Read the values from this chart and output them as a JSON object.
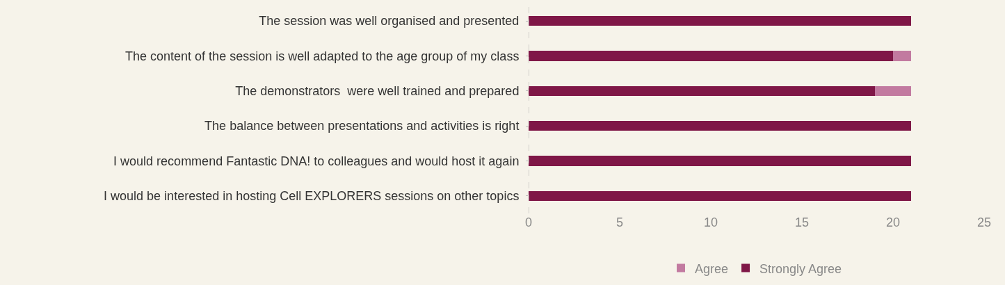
{
  "chart_data": {
    "type": "bar",
    "orientation": "horizontal",
    "stacked": true,
    "categories": [
      "The session was well organised and presented",
      "The content of the session is well adapted to the age group of my class",
      "The demonstrators  were well trained and prepared",
      "The balance between presentations and activities is right",
      "I would recommend Fantastic DNA! to colleagues and would host it again",
      "I would be interested in hosting Cell EXPLORERS sessions on other topics"
    ],
    "series": [
      {
        "name": "Strongly Agree",
        "color": "#7f1747",
        "values": [
          21,
          20,
          19,
          21,
          21,
          21
        ]
      },
      {
        "name": "Agree",
        "color": "#c27aa0",
        "values": [
          0,
          1,
          2,
          0,
          0,
          0
        ]
      }
    ],
    "xlim": [
      0,
      25
    ],
    "xticks": [
      0,
      5,
      10,
      15,
      20,
      25
    ],
    "ref_lines": [
      {
        "axis": "x",
        "value": 0,
        "color": "#aaaaaa",
        "line_style": "dashed"
      }
    ],
    "grid": false,
    "legend": "bottom"
  }
}
